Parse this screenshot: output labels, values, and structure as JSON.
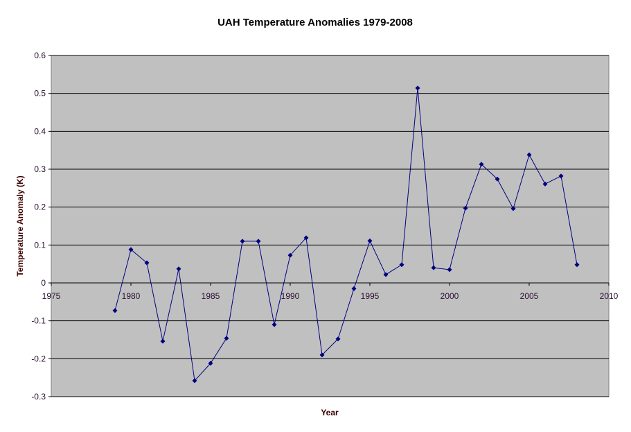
{
  "chart_data": {
    "type": "scatter",
    "title": "UAH Temperature Anomalies 1979-2008",
    "xlabel": "Year",
    "ylabel": "Temperature Anomaly (K)",
    "xlim": [
      1975,
      2010
    ],
    "ylim": [
      -0.3,
      0.6
    ],
    "xticks": [
      "1975",
      "1980",
      "1985",
      "1990",
      "1995",
      "2000",
      "2005",
      "2010"
    ],
    "yticks": [
      "0.6",
      "0.5",
      "0.4",
      "0.3",
      "0.2",
      "0.1",
      "0",
      "-0.1",
      "-0.2",
      "-0.3"
    ],
    "grid": "horizontal",
    "legend": "none",
    "plot_background": "#c0c0c0",
    "series_color": "#000080",
    "x": [
      1979,
      1980,
      1981,
      1982,
      1983,
      1984,
      1985,
      1986,
      1987,
      1988,
      1989,
      1990,
      1991,
      1992,
      1993,
      1994,
      1995,
      1996,
      1997,
      1998,
      1999,
      2000,
      2001,
      2002,
      2003,
      2004,
      2005,
      2006,
      2007,
      2008
    ],
    "y": [
      -0.073,
      0.088,
      0.053,
      -0.154,
      0.037,
      -0.258,
      -0.212,
      -0.146,
      0.11,
      0.11,
      -0.11,
      0.073,
      0.119,
      -0.19,
      -0.148,
      -0.015,
      0.111,
      0.022,
      0.048,
      0.514,
      0.04,
      0.035,
      0.197,
      0.313,
      0.274,
      0.196,
      0.338,
      0.261,
      0.282,
      0.048
    ]
  }
}
